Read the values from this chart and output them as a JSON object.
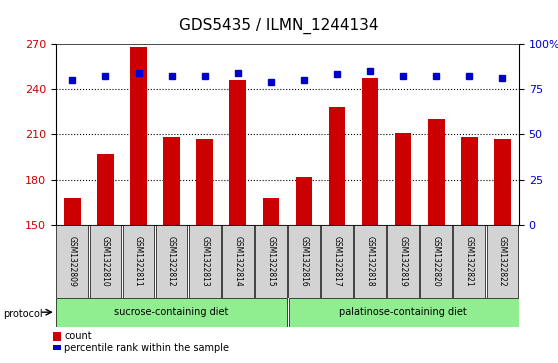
{
  "title": "GDS5435 / ILMN_1244134",
  "samples": [
    "GSM1322809",
    "GSM1322810",
    "GSM1322811",
    "GSM1322812",
    "GSM1322813",
    "GSM1322814",
    "GSM1322815",
    "GSM1322816",
    "GSM1322817",
    "GSM1322818",
    "GSM1322819",
    "GSM1322820",
    "GSM1322821",
    "GSM1322822"
  ],
  "counts": [
    168,
    197,
    268,
    208,
    207,
    246,
    168,
    182,
    228,
    247,
    211,
    220,
    208,
    207
  ],
  "percentiles": [
    80,
    82,
    84,
    82,
    82,
    84,
    79,
    80,
    83,
    85,
    82,
    82,
    82,
    81
  ],
  "ylim_left": [
    150,
    270
  ],
  "ylim_right": [
    0,
    100
  ],
  "yticks_left": [
    150,
    180,
    210,
    240,
    270
  ],
  "yticks_right": [
    0,
    25,
    50,
    75,
    100
  ],
  "ytick_labels_right": [
    "0",
    "25",
    "50",
    "75",
    "100%"
  ],
  "bar_color": "#cc0000",
  "dot_color": "#0000cc",
  "grid_color": "#000000",
  "bg_color": "#ffffff",
  "plot_bg": "#ffffff",
  "left_label_color": "#cc0000",
  "right_label_color": "#0000cc",
  "group1_label": "sucrose-containing diet",
  "group2_label": "palatinose-containing diet",
  "group1_count": 7,
  "group2_count": 7,
  "group_bg": "#90ee90",
  "sample_bg": "#d3d3d3",
  "protocol_label": "protocol",
  "legend_count_label": "count",
  "legend_pct_label": "percentile rank within the sample",
  "bar_width": 0.5
}
